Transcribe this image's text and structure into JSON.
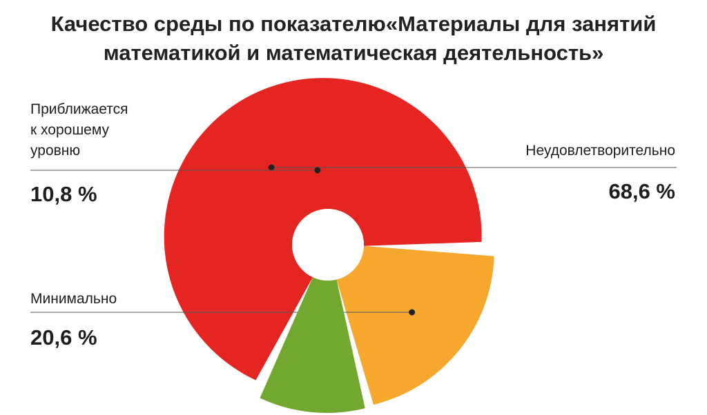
{
  "title": "Качество среды по показателю«Материалы для занятий математикой и математическая деятельность»",
  "chart_data": {
    "type": "pie",
    "title": "Качество среды по показателю«Материалы для занятий математикой и математическая деятельность»",
    "slices": [
      {
        "label": "Неудовлетворительно",
        "value": 68.6,
        "value_label": "68,6 %",
        "color": "#e52522"
      },
      {
        "label": "Минимально",
        "value": 20.6,
        "value_label": "20,6 %",
        "color": "#f6a72d"
      },
      {
        "label": "Приближается к хорошему уровню",
        "label_lines": [
          "Приближается",
          "к хорошему",
          "уровню"
        ],
        "value": 10.8,
        "value_label": "10,8 %",
        "color": "#72a730"
      }
    ],
    "donut_hole": true,
    "exploded": true,
    "legend": "none"
  }
}
